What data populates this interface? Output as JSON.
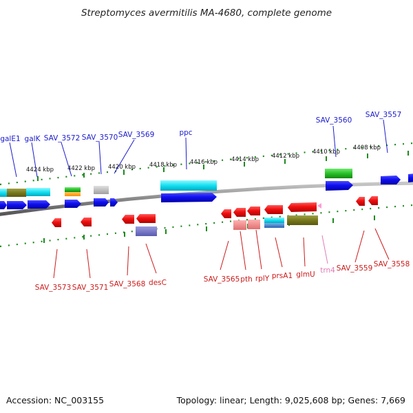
{
  "title": "Streptomyces avermitilis MA-4680, complete genome",
  "footer": {
    "accession": "Accession: NC_003155",
    "topology": "Topology: linear; Length: 9,025,608 bp; Genes: 7,669"
  },
  "colors": {
    "forward_label": "#1a1acc",
    "reverse_label": "#cc1a1a",
    "trna_label": "#e07cb8",
    "ruler": "#1c8a1c",
    "backbone": "#8a8a8a"
  },
  "kbp_ticks": [
    "4424 kbp",
    "4422 kbp",
    "4420 kbp",
    "4418 kbp",
    "4416 kbp",
    "4414 kbp",
    "4412 kbp",
    "4410 kbp",
    "4408 kbp"
  ],
  "forward_genes": [
    "galE1",
    "galK",
    "SAV_3572",
    "SAV_3570",
    "SAV_3569",
    "ppc",
    "SAV_3560",
    "SAV_3557"
  ],
  "reverse_genes": [
    "SAV_3573",
    "SAV_3571",
    "SAV_3568",
    "desC",
    "SAV_3565",
    "pth",
    "rplY",
    "prsA1",
    "glmU",
    "trn4",
    "SAV_3559",
    "SAV_3558"
  ]
}
